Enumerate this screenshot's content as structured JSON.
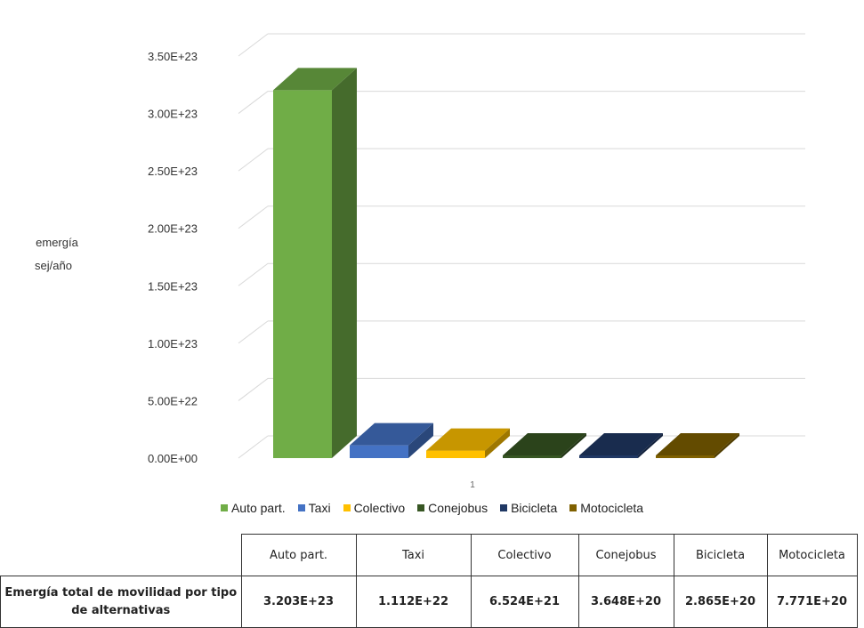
{
  "chart_data": {
    "type": "bar",
    "three_d": true,
    "title": "",
    "ylabel_lines": [
      "emergía",
      "sej/año"
    ],
    "xlabel": "",
    "x_tick": "1",
    "ylim": [
      0,
      3.5e+23
    ],
    "y_ticks": [
      "0.00E+00",
      "5.00E+22",
      "1.00E+23",
      "1.50E+23",
      "2.00E+23",
      "2.50E+23",
      "3.00E+23",
      "3.50E+23"
    ],
    "grid": true,
    "legend_position": "bottom",
    "series": [
      {
        "name": "Auto part.",
        "value": 3.203e+23,
        "color": "#70AD47"
      },
      {
        "name": "Taxi",
        "value": 1.112e+22,
        "color": "#4472C4"
      },
      {
        "name": "Colectivo",
        "value": 6.524e+21,
        "color": "#FFC000"
      },
      {
        "name": "Conejobus",
        "value": 3.648e+20,
        "color": "#375623"
      },
      {
        "name": "Bicicleta",
        "value": 2.865e+20,
        "color": "#203864"
      },
      {
        "name": "Motocicleta",
        "value": 7.771e+20,
        "color": "#7F6000"
      }
    ]
  },
  "table": {
    "headers": [
      "Auto part.",
      "Taxi",
      "Colectivo",
      "Conejobus",
      "Bicicleta",
      "Motocicleta"
    ],
    "row_label": "Emergía total de movilidad por tipo de alternativas",
    "values": [
      "3.203E+23",
      "1.112E+22",
      "6.524E+21",
      "3.648E+20",
      "2.865E+20",
      "7.771E+20"
    ]
  }
}
